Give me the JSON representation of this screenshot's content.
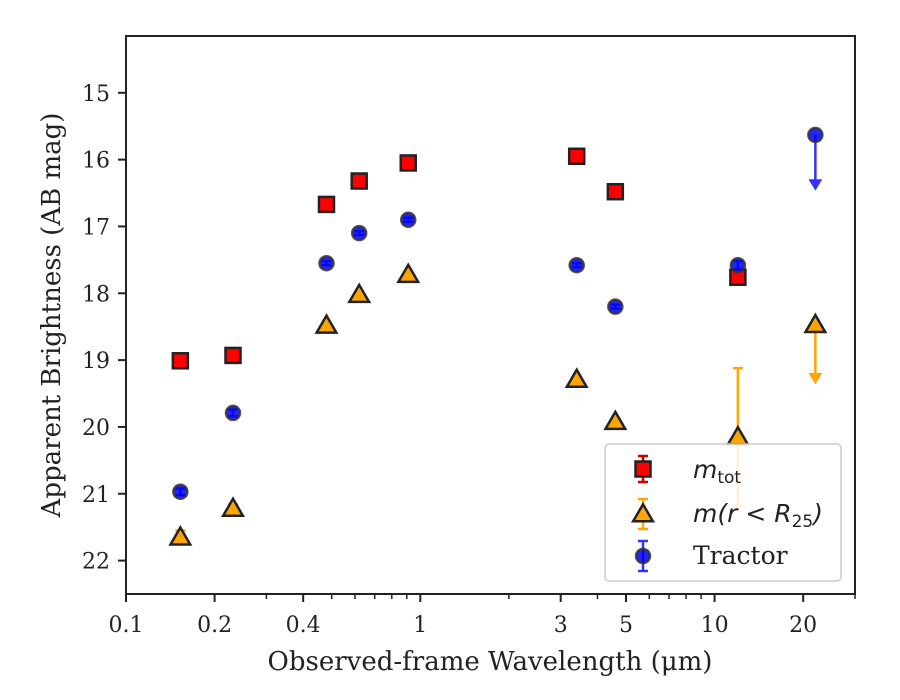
{
  "chart_data": {
    "type": "scatter",
    "xlabel": "Observed-frame Wavelength (μm)",
    "ylabel": "Apparent Brightness (AB mag)",
    "xscale": "log",
    "xlim": [
      0.1,
      30
    ],
    "ylim": [
      22.5,
      14.15
    ],
    "y_inverted": true,
    "grid": false,
    "legend_position": "bottom-right",
    "x_ticks": [
      {
        "value": 0.1,
        "label": "0.1"
      },
      {
        "value": 0.2,
        "label": "0.2"
      },
      {
        "value": 0.4,
        "label": "0.4"
      },
      {
        "value": 1,
        "label": "1"
      },
      {
        "value": 3,
        "label": "3"
      },
      {
        "value": 5,
        "label": "5"
      },
      {
        "value": 10,
        "label": "10"
      },
      {
        "value": 20,
        "label": "20"
      }
    ],
    "y_ticks": [
      {
        "value": 15,
        "label": "15"
      },
      {
        "value": 16,
        "label": "16"
      },
      {
        "value": 17,
        "label": "17"
      },
      {
        "value": 18,
        "label": "18"
      },
      {
        "value": 19,
        "label": "19"
      },
      {
        "value": 20,
        "label": "20"
      },
      {
        "value": 21,
        "label": "21"
      },
      {
        "value": 22,
        "label": "22"
      }
    ],
    "series": [
      {
        "name": "m_tot",
        "name_main": "m",
        "name_sub": "tot",
        "marker": "square",
        "color": "#ff0000",
        "edge_color": "#222222",
        "errorbar_color": "#cc0000",
        "x": [
          0.153,
          0.231,
          0.48,
          0.62,
          0.91,
          3.4,
          4.6,
          12.0
        ],
        "y": [
          19.01,
          18.93,
          16.67,
          16.32,
          16.05,
          15.95,
          16.48,
          17.76
        ],
        "yerr": [
          0.04,
          0.04,
          0.02,
          0.02,
          0.02,
          0.02,
          0.02,
          0.06
        ]
      },
      {
        "name": "m(r < R25)",
        "name_main": "m(r < R",
        "name_sub": "25",
        "name_tail": ")",
        "marker": "triangle",
        "color": "#ffa500",
        "edge_color": "#222222",
        "errorbar_color": "#ffa500",
        "x": [
          0.153,
          0.231,
          0.48,
          0.62,
          0.91,
          3.4,
          4.6,
          12.0,
          22.0
        ],
        "y": [
          21.65,
          21.22,
          18.48,
          18.02,
          17.72,
          19.29,
          19.92,
          20.15,
          18.47
        ],
        "yerr": [
          0.1,
          0.06,
          0.03,
          0.03,
          0.03,
          0.03,
          0.03,
          1.03,
          0
        ],
        "upper_limit": [
          false,
          false,
          false,
          false,
          false,
          false,
          false,
          false,
          true
        ],
        "upper_limit_to": [
          null,
          null,
          null,
          null,
          null,
          null,
          null,
          null,
          19.35
        ]
      },
      {
        "name": "Tractor",
        "marker": "circle",
        "color": "#0000ee",
        "edge_color": "#333333",
        "errorbar_color": "#3333ff",
        "x": [
          0.153,
          0.231,
          0.48,
          0.62,
          0.91,
          3.4,
          4.6,
          12.0,
          22.0
        ],
        "y": [
          20.97,
          19.79,
          17.55,
          17.1,
          16.9,
          17.58,
          18.2,
          17.58,
          15.63
        ],
        "yerr": [
          0.05,
          0.05,
          0.03,
          0.03,
          0.03,
          0.03,
          0.03,
          0.06,
          0
        ],
        "upper_limit": [
          false,
          false,
          false,
          false,
          false,
          false,
          false,
          false,
          true
        ],
        "upper_limit_to": [
          null,
          null,
          null,
          null,
          null,
          null,
          null,
          null,
          16.45
        ]
      }
    ]
  },
  "legend": {
    "tractor_label": "Tractor"
  }
}
